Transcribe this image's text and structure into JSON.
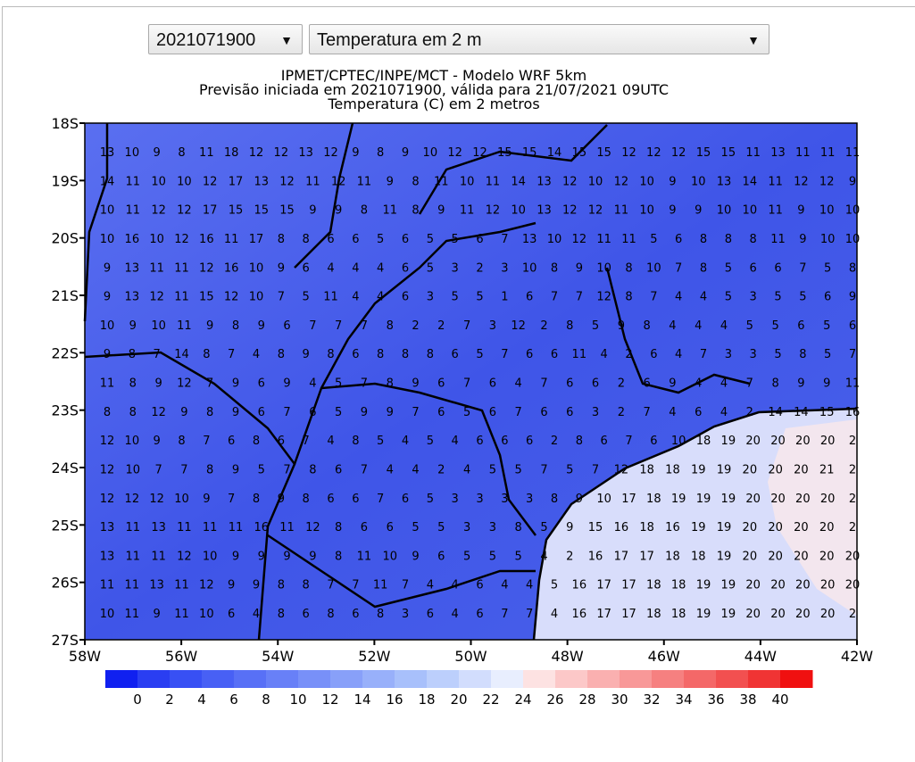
{
  "controls": {
    "run_select": "2021071900",
    "field_select": "Temperatura em 2 m"
  },
  "map": {
    "title_lines": [
      "IPMET/CPTEC/INPE/MCT - Modelo WRF 5km",
      "Previsão iniciada em 2021071900, válida para 21/07/2021 09UTC",
      "Temperatura (C) em 2 metros"
    ],
    "y_labels": [
      "18S",
      "19S",
      "20S",
      "21S",
      "22S",
      "23S",
      "24S",
      "25S",
      "26S",
      "27S"
    ],
    "x_labels": [
      "58W",
      "56W",
      "54W",
      "52W",
      "50W",
      "48W",
      "46W",
      "44W",
      "42W"
    ],
    "grid": {
      "rows": [
        [
          13,
          10,
          9,
          8,
          11,
          18,
          12,
          12,
          13,
          12,
          9,
          8,
          9,
          10,
          12,
          12,
          15,
          15,
          14,
          15,
          15,
          12,
          12,
          12,
          15,
          15,
          11,
          13,
          11,
          11,
          11
        ],
        [
          14,
          11,
          10,
          10,
          12,
          17,
          13,
          12,
          11,
          12,
          11,
          9,
          8,
          11,
          10,
          11,
          14,
          13,
          12,
          10,
          12,
          10,
          9,
          10,
          13,
          14,
          11,
          12,
          12,
          9
        ],
        [
          10,
          11,
          12,
          12,
          17,
          15,
          15,
          15,
          9,
          9,
          8,
          11,
          8,
          9,
          11,
          12,
          10,
          13,
          12,
          12,
          11,
          10,
          9,
          9,
          10,
          10,
          11,
          9,
          10,
          10
        ],
        [
          10,
          16,
          10,
          12,
          16,
          11,
          17,
          8,
          8,
          6,
          6,
          5,
          6,
          5,
          5,
          6,
          7,
          13,
          10,
          12,
          11,
          11,
          5,
          6,
          8,
          8,
          8,
          11,
          9,
          10,
          10
        ],
        [
          9,
          13,
          11,
          11,
          12,
          16,
          10,
          9,
          6,
          4,
          4,
          4,
          6,
          5,
          3,
          2,
          3,
          10,
          8,
          9,
          10,
          8,
          10,
          7,
          8,
          5,
          6,
          6,
          7,
          5,
          8
        ],
        [
          9,
          13,
          12,
          11,
          15,
          12,
          10,
          7,
          5,
          11,
          4,
          4,
          6,
          3,
          5,
          5,
          1,
          6,
          7,
          7,
          12,
          8,
          7,
          4,
          4,
          5,
          3,
          5,
          5,
          6,
          9
        ],
        [
          10,
          9,
          10,
          11,
          9,
          8,
          9,
          6,
          7,
          7,
          7,
          8,
          2,
          2,
          7,
          3,
          12,
          2,
          8,
          5,
          9,
          8,
          4,
          4,
          4,
          5,
          5,
          6,
          5,
          6
        ],
        [
          9,
          8,
          7,
          14,
          8,
          7,
          4,
          8,
          9,
          8,
          6,
          8,
          8,
          8,
          6,
          5,
          7,
          6,
          6,
          11,
          4,
          2,
          6,
          4,
          7,
          3,
          3,
          5,
          8,
          5,
          7
        ],
        [
          11,
          8,
          9,
          12,
          7,
          9,
          6,
          9,
          4,
          5,
          7,
          8,
          9,
          6,
          7,
          6,
          4,
          7,
          6,
          6,
          2,
          6,
          9,
          4,
          4,
          7,
          8,
          9,
          9,
          11
        ],
        [
          8,
          8,
          12,
          9,
          8,
          9,
          6,
          7,
          6,
          5,
          9,
          9,
          7,
          6,
          5,
          6,
          7,
          6,
          6,
          3,
          2,
          7,
          4,
          6,
          4,
          2,
          14,
          14,
          15,
          16
        ],
        [
          12,
          10,
          9,
          8,
          7,
          6,
          8,
          6,
          7,
          4,
          8,
          5,
          4,
          5,
          4,
          6,
          6,
          6,
          2,
          8,
          6,
          7,
          6,
          10,
          18,
          19,
          20,
          20,
          20,
          20,
          2
        ],
        [
          12,
          10,
          7,
          7,
          8,
          9,
          5,
          7,
          8,
          6,
          7,
          4,
          4,
          2,
          4,
          5,
          5,
          7,
          5,
          7,
          12,
          18,
          18,
          19,
          19,
          20,
          20,
          20,
          21,
          2
        ],
        [
          12,
          12,
          12,
          10,
          9,
          7,
          8,
          9,
          8,
          6,
          6,
          7,
          6,
          5,
          3,
          3,
          3,
          3,
          8,
          9,
          10,
          17,
          18,
          19,
          19,
          19,
          20,
          20,
          20,
          20,
          2
        ],
        [
          13,
          11,
          13,
          11,
          11,
          11,
          16,
          11,
          12,
          8,
          6,
          6,
          5,
          5,
          3,
          3,
          8,
          5,
          9,
          15,
          16,
          18,
          16,
          19,
          19,
          20,
          20,
          20,
          20,
          2
        ],
        [
          13,
          11,
          11,
          12,
          10,
          9,
          9,
          9,
          9,
          8,
          11,
          10,
          9,
          6,
          5,
          5,
          5,
          4,
          2,
          16,
          17,
          17,
          18,
          18,
          19,
          20,
          20,
          20,
          20,
          20
        ],
        [
          11,
          11,
          13,
          11,
          12,
          9,
          9,
          8,
          8,
          7,
          7,
          11,
          7,
          4,
          4,
          6,
          4,
          4,
          5,
          16,
          17,
          17,
          18,
          18,
          19,
          19,
          20,
          20,
          20,
          20,
          20
        ],
        [
          10,
          11,
          9,
          11,
          10,
          6,
          4,
          8,
          6,
          8,
          6,
          8,
          3,
          6,
          4,
          6,
          7,
          7,
          4,
          16,
          17,
          17,
          18,
          18,
          19,
          19,
          20,
          20,
          20,
          20,
          2
        ]
      ]
    }
  },
  "colorbar": {
    "labels": [
      0,
      2,
      4,
      6,
      8,
      10,
      12,
      14,
      16,
      18,
      20,
      22,
      24,
      26,
      28,
      30,
      32,
      34,
      36,
      38,
      40
    ],
    "colors": [
      "#1020f0",
      "#2a3ef2",
      "#3850f4",
      "#4860f5",
      "#5870f6",
      "#6880f7",
      "#7890f8",
      "#88a0f9",
      "#98b0fa",
      "#a8c0fb",
      "#bccffc",
      "#d2ddfd",
      "#e8eefe",
      "#fde2e2",
      "#fcc8c8",
      "#fab0b0",
      "#f89898",
      "#f68080",
      "#f46868",
      "#f25050",
      "#f03434",
      "#f01010"
    ]
  }
}
